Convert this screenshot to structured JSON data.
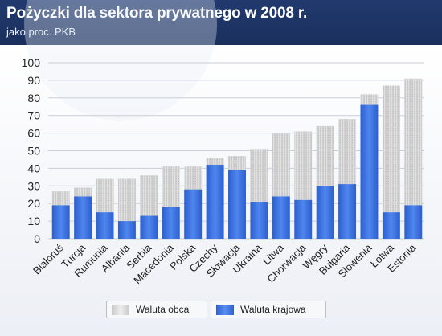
{
  "title": "Pożyczki dla sektora prywatnego w 2008 r.",
  "subtitle": "jako proc. PKB",
  "legend": {
    "foreign": "Waluta obca",
    "local": "Waluta krajowa"
  },
  "colors": {
    "header_bg": "#1e3566",
    "foreign": "#d4d4d4",
    "local": "#3d73e0"
  },
  "chart_data": {
    "type": "bar",
    "stacked": true,
    "title": "Pożyczki dla sektora prywatnego w 2008 r.",
    "subtitle": "jako proc. PKB",
    "categories": [
      "Białoruś",
      "Turcja",
      "Rumunia",
      "Albania",
      "Serbia",
      "Macedonia",
      "Polska",
      "Czechy",
      "Słowacja",
      "Ukraina",
      "Litwa",
      "Chorwacja",
      "Węgry",
      "Bułgaria",
      "Słowenia",
      "Łotwa",
      "Estonia"
    ],
    "series": [
      {
        "name": "Waluta krajowa",
        "values": [
          19,
          24,
          15,
          10,
          13,
          18,
          28,
          42,
          39,
          21,
          24,
          22,
          30,
          31,
          76,
          15,
          19
        ]
      },
      {
        "name": "Waluta obca",
        "values": [
          8,
          5,
          19,
          24,
          23,
          23,
          13,
          4,
          8,
          30,
          36,
          39,
          34,
          37,
          6,
          72,
          72
        ]
      }
    ],
    "ylim": [
      0,
      100
    ],
    "yticks": [
      0,
      10,
      20,
      30,
      40,
      50,
      60,
      70,
      80,
      90,
      100
    ],
    "grid": true,
    "legend_position": "bottom"
  }
}
